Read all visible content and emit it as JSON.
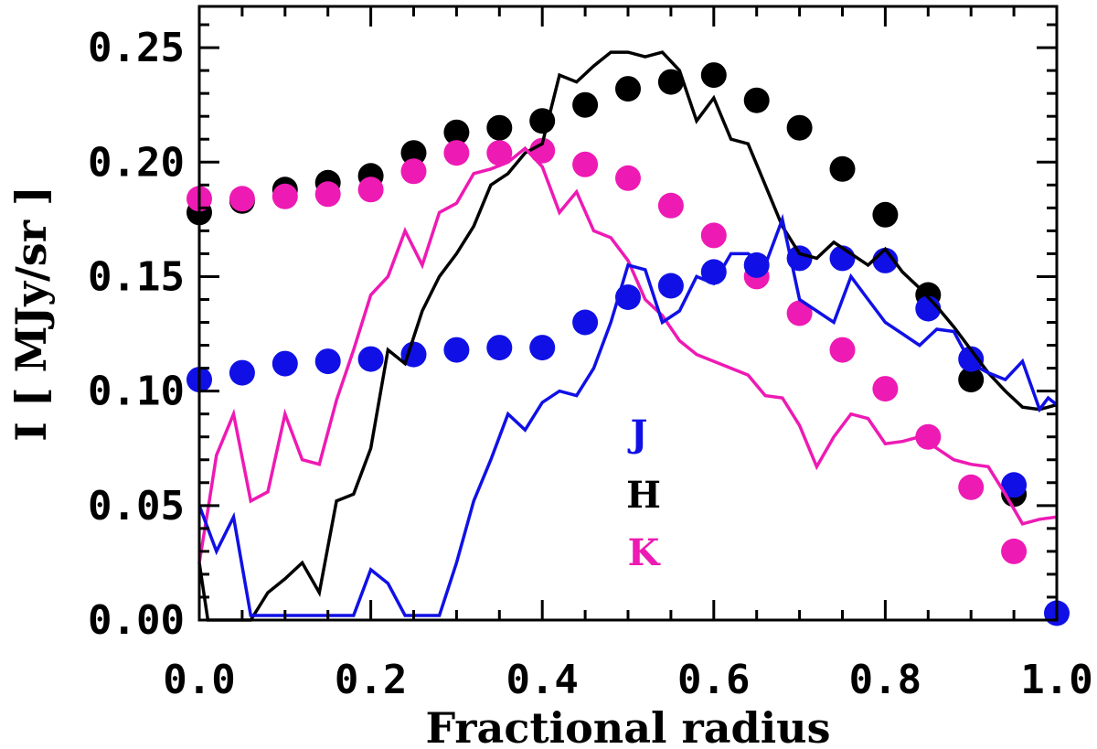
{
  "chart_data": {
    "type": "scatter",
    "title": "",
    "xlabel": "Fractional radius",
    "ylabel": "I [ MJy/sr ]",
    "xlim": [
      0.0,
      1.0
    ],
    "ylim": [
      0.0,
      0.268
    ],
    "x_ticks": [
      0.0,
      0.2,
      0.4,
      0.6,
      0.8,
      1.0
    ],
    "x_tick_labels": [
      "0.0",
      "0.2",
      "0.4",
      "0.6",
      "0.8",
      "1.0"
    ],
    "y_ticks": [
      0.0,
      0.05,
      0.1,
      0.15,
      0.2,
      0.25
    ],
    "y_tick_labels": [
      "0.00",
      "0.05",
      "0.10",
      "0.15",
      "0.20",
      "0.25"
    ],
    "grid": false,
    "legend": [
      {
        "label": "J",
        "color": "#1010e6"
      },
      {
        "label": "H",
        "color": "#000000"
      },
      {
        "label": "K",
        "color": "#ee1ab4"
      }
    ],
    "series": [
      {
        "name": "H model",
        "kind": "points",
        "color": "#000000",
        "x": [
          0.0,
          0.05,
          0.1,
          0.15,
          0.2,
          0.25,
          0.3,
          0.35,
          0.4,
          0.45,
          0.5,
          0.55,
          0.6,
          0.65,
          0.7,
          0.75,
          0.8,
          0.85,
          0.9,
          0.95
        ],
        "y": [
          0.178,
          0.183,
          0.188,
          0.191,
          0.194,
          0.204,
          0.213,
          0.215,
          0.218,
          0.225,
          0.232,
          0.235,
          0.238,
          0.227,
          0.215,
          0.197,
          0.177,
          0.142,
          0.105,
          0.055
        ]
      },
      {
        "name": "K model",
        "kind": "points",
        "color": "#ee1ab4",
        "x": [
          0.0,
          0.05,
          0.1,
          0.15,
          0.2,
          0.25,
          0.3,
          0.35,
          0.4,
          0.45,
          0.5,
          0.55,
          0.6,
          0.65,
          0.7,
          0.75,
          0.8,
          0.85,
          0.9,
          0.95
        ],
        "y": [
          0.184,
          0.184,
          0.185,
          0.186,
          0.188,
          0.196,
          0.204,
          0.204,
          0.205,
          0.199,
          0.193,
          0.181,
          0.168,
          0.15,
          0.134,
          0.118,
          0.101,
          0.08,
          0.058,
          0.03
        ]
      },
      {
        "name": "J model",
        "kind": "points",
        "color": "#1010e6",
        "x": [
          0.0,
          0.05,
          0.1,
          0.15,
          0.2,
          0.25,
          0.3,
          0.35,
          0.4,
          0.45,
          0.5,
          0.55,
          0.6,
          0.65,
          0.7,
          0.75,
          0.8,
          0.85,
          0.9,
          0.95,
          1.0
        ],
        "y": [
          0.105,
          0.108,
          0.112,
          0.113,
          0.114,
          0.116,
          0.118,
          0.119,
          0.119,
          0.13,
          0.141,
          0.146,
          0.152,
          0.155,
          0.158,
          0.158,
          0.157,
          0.136,
          0.114,
          0.059,
          0.003
        ]
      },
      {
        "name": "H observed",
        "kind": "line",
        "color": "#000000",
        "x": [
          0.0,
          0.01,
          0.02,
          0.04,
          0.06,
          0.08,
          0.1,
          0.12,
          0.14,
          0.16,
          0.18,
          0.2,
          0.22,
          0.24,
          0.26,
          0.28,
          0.3,
          0.32,
          0.34,
          0.36,
          0.38,
          0.4,
          0.42,
          0.44,
          0.46,
          0.48,
          0.5,
          0.52,
          0.54,
          0.56,
          0.58,
          0.6,
          0.62,
          0.64,
          0.66,
          0.68,
          0.7,
          0.72,
          0.74,
          0.76,
          0.78,
          0.8,
          0.82,
          0.84,
          0.86,
          0.88,
          0.9,
          0.92,
          0.94,
          0.96,
          0.98,
          1.0
        ],
        "y": [
          0.025,
          0.0,
          0.0,
          0.0,
          0.0,
          0.012,
          0.018,
          0.025,
          0.012,
          0.052,
          0.055,
          0.075,
          0.118,
          0.112,
          0.135,
          0.15,
          0.16,
          0.172,
          0.19,
          0.195,
          0.204,
          0.208,
          0.238,
          0.235,
          0.242,
          0.248,
          0.248,
          0.246,
          0.248,
          0.24,
          0.218,
          0.228,
          0.21,
          0.208,
          0.19,
          0.172,
          0.16,
          0.158,
          0.165,
          0.16,
          0.155,
          0.162,
          0.152,
          0.145,
          0.137,
          0.128,
          0.118,
          0.108,
          0.1,
          0.093,
          0.092,
          0.094
        ]
      },
      {
        "name": "K observed",
        "kind": "line",
        "color": "#ee1ab4",
        "x": [
          0.0,
          0.01,
          0.02,
          0.04,
          0.06,
          0.08,
          0.1,
          0.12,
          0.14,
          0.16,
          0.18,
          0.2,
          0.22,
          0.24,
          0.26,
          0.28,
          0.3,
          0.32,
          0.34,
          0.36,
          0.38,
          0.4,
          0.42,
          0.44,
          0.46,
          0.48,
          0.5,
          0.52,
          0.54,
          0.56,
          0.58,
          0.6,
          0.62,
          0.64,
          0.66,
          0.68,
          0.7,
          0.72,
          0.74,
          0.76,
          0.78,
          0.8,
          0.82,
          0.84,
          0.86,
          0.88,
          0.9,
          0.92,
          0.94,
          0.96,
          0.98,
          1.0
        ],
        "y": [
          0.025,
          0.048,
          0.072,
          0.09,
          0.052,
          0.056,
          0.09,
          0.07,
          0.068,
          0.096,
          0.118,
          0.142,
          0.15,
          0.17,
          0.155,
          0.178,
          0.182,
          0.195,
          0.197,
          0.2,
          0.206,
          0.198,
          0.178,
          0.187,
          0.17,
          0.167,
          0.157,
          0.14,
          0.133,
          0.122,
          0.116,
          0.113,
          0.11,
          0.107,
          0.098,
          0.097,
          0.085,
          0.067,
          0.08,
          0.09,
          0.088,
          0.077,
          0.078,
          0.08,
          0.075,
          0.07,
          0.068,
          0.067,
          0.055,
          0.042,
          0.044,
          0.045
        ]
      },
      {
        "name": "J observed",
        "kind": "line",
        "color": "#1010e6",
        "x": [
          0.0,
          0.01,
          0.02,
          0.04,
          0.06,
          0.08,
          0.1,
          0.12,
          0.14,
          0.16,
          0.18,
          0.2,
          0.22,
          0.24,
          0.26,
          0.28,
          0.3,
          0.32,
          0.34,
          0.36,
          0.38,
          0.4,
          0.42,
          0.44,
          0.46,
          0.48,
          0.5,
          0.52,
          0.54,
          0.56,
          0.58,
          0.6,
          0.62,
          0.64,
          0.66,
          0.68,
          0.7,
          0.72,
          0.74,
          0.76,
          0.78,
          0.8,
          0.82,
          0.84,
          0.86,
          0.88,
          0.9,
          0.92,
          0.94,
          0.96,
          0.98,
          0.99,
          1.0
        ],
        "y": [
          0.05,
          0.04,
          0.03,
          0.045,
          0.002,
          0.002,
          0.002,
          0.002,
          0.002,
          0.002,
          0.002,
          0.022,
          0.016,
          0.002,
          0.002,
          0.002,
          0.025,
          0.052,
          0.07,
          0.09,
          0.083,
          0.095,
          0.1,
          0.098,
          0.11,
          0.13,
          0.155,
          0.153,
          0.13,
          0.135,
          0.15,
          0.147,
          0.16,
          0.16,
          0.155,
          0.175,
          0.14,
          0.135,
          0.13,
          0.15,
          0.14,
          0.13,
          0.125,
          0.12,
          0.127,
          0.126,
          0.112,
          0.108,
          0.105,
          0.113,
          0.092,
          0.097,
          0.094
        ]
      }
    ]
  }
}
